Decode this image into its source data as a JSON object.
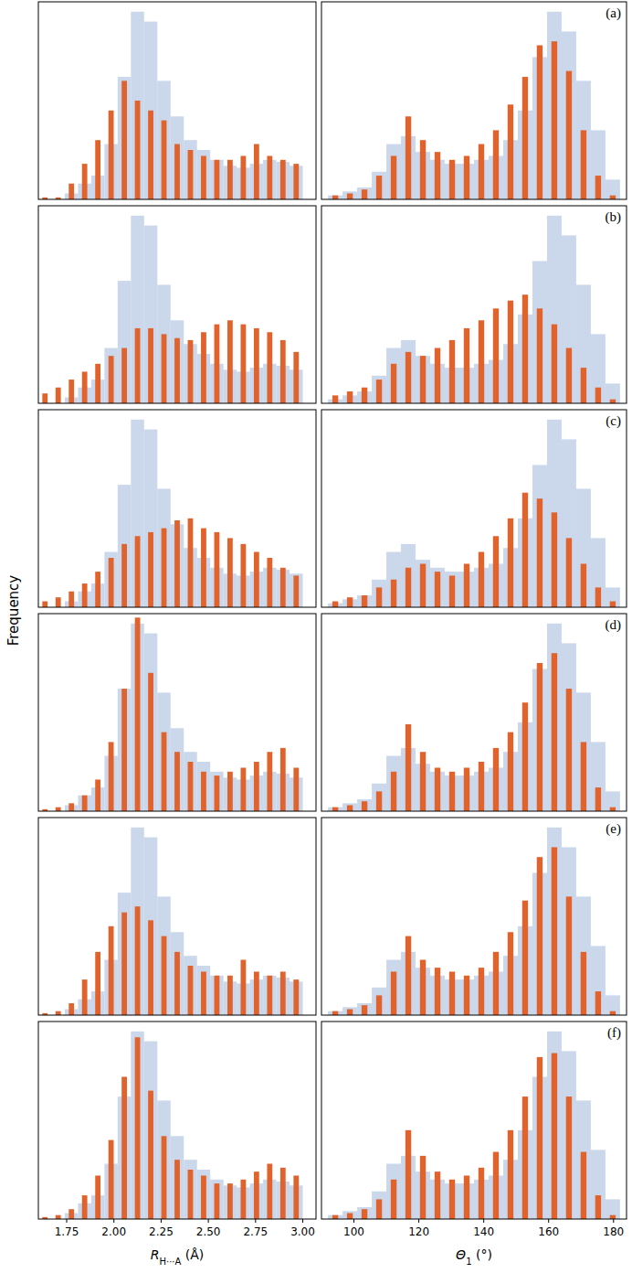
{
  "chart_data": [
    {
      "type": "histogram",
      "y_label": "Frequency",
      "xlim": [
        1.6,
        3.07
      ],
      "ylim": [
        0,
        100
      ],
      "tick_labels": false,
      "bins": [
        1.6,
        1.67,
        1.74,
        1.81,
        1.88,
        1.95,
        2.02,
        2.09,
        2.16,
        2.23,
        2.3,
        2.37,
        2.44,
        2.51,
        2.58,
        2.65,
        2.72,
        2.79,
        2.86,
        2.93,
        3.0
      ],
      "series": [
        {
          "color": "#c5d3e8",
          "values": [
            0,
            0,
            3,
            8,
            12,
            28,
            62,
            95,
            90,
            60,
            42,
            30,
            25,
            20,
            17,
            16,
            18,
            20,
            19,
            17
          ]
        },
        {
          "color": "#e0622c",
          "values": [
            1,
            1,
            8,
            18,
            30,
            45,
            60,
            50,
            45,
            40,
            28,
            25,
            22,
            20,
            20,
            22,
            28,
            22,
            20,
            18
          ]
        }
      ]
    },
    {
      "type": "histogram",
      "title": "(a)",
      "xlim": [
        90,
        184
      ],
      "ylim": [
        0,
        100
      ],
      "tick_labels": false,
      "bins": [
        92,
        96.5,
        101,
        105.5,
        110,
        114.5,
        119,
        123.5,
        128,
        132.5,
        137,
        141.5,
        146,
        150.5,
        155,
        159.5,
        164,
        168.5,
        173,
        177.5,
        182
      ],
      "series": [
        {
          "color": "#c5d3e8",
          "values": [
            2,
            4,
            6,
            14,
            28,
            32,
            24,
            20,
            18,
            18,
            20,
            22,
            30,
            45,
            72,
            95,
            85,
            60,
            35,
            10
          ]
        },
        {
          "color": "#e0622c",
          "values": [
            2,
            3,
            5,
            12,
            22,
            42,
            30,
            24,
            20,
            22,
            28,
            35,
            48,
            62,
            78,
            80,
            65,
            35,
            12,
            2
          ]
        }
      ]
    },
    {
      "type": "histogram",
      "xlim": [
        1.6,
        3.07
      ],
      "ylim": [
        0,
        100
      ],
      "tick_labels": false,
      "bins": [
        1.6,
        1.67,
        1.74,
        1.81,
        1.88,
        1.95,
        2.02,
        2.09,
        2.16,
        2.23,
        2.3,
        2.37,
        2.44,
        2.51,
        2.58,
        2.65,
        2.72,
        2.79,
        2.86,
        2.93,
        3.0
      ],
      "series": [
        {
          "color": "#c5d3e8",
          "values": [
            0,
            0,
            3,
            8,
            12,
            28,
            62,
            95,
            90,
            60,
            42,
            30,
            25,
            20,
            17,
            16,
            18,
            20,
            19,
            17
          ]
        },
        {
          "color": "#e0622c",
          "values": [
            5,
            8,
            12,
            16,
            20,
            24,
            28,
            38,
            38,
            35,
            33,
            32,
            36,
            40,
            42,
            40,
            38,
            36,
            32,
            26
          ]
        }
      ]
    },
    {
      "type": "histogram",
      "title": "(b)",
      "xlim": [
        90,
        184
      ],
      "ylim": [
        0,
        100
      ],
      "tick_labels": false,
      "bins": [
        92,
        96.5,
        101,
        105.5,
        110,
        114.5,
        119,
        123.5,
        128,
        132.5,
        137,
        141.5,
        146,
        150.5,
        155,
        159.5,
        164,
        168.5,
        173,
        177.5,
        182
      ],
      "series": [
        {
          "color": "#c5d3e8",
          "values": [
            2,
            4,
            6,
            14,
            28,
            32,
            24,
            20,
            18,
            18,
            20,
            22,
            30,
            45,
            72,
            95,
            85,
            60,
            35,
            10
          ]
        },
        {
          "color": "#e0622c",
          "values": [
            4,
            6,
            8,
            12,
            20,
            26,
            24,
            28,
            32,
            38,
            42,
            48,
            52,
            55,
            48,
            40,
            28,
            18,
            8,
            2
          ]
        }
      ]
    },
    {
      "type": "histogram",
      "xlim": [
        1.6,
        3.07
      ],
      "ylim": [
        0,
        100
      ],
      "tick_labels": false,
      "bins": [
        1.6,
        1.67,
        1.74,
        1.81,
        1.88,
        1.95,
        2.02,
        2.09,
        2.16,
        2.23,
        2.3,
        2.37,
        2.44,
        2.51,
        2.58,
        2.65,
        2.72,
        2.79,
        2.86,
        2.93,
        3.0
      ],
      "series": [
        {
          "color": "#c5d3e8",
          "values": [
            0,
            0,
            3,
            8,
            12,
            28,
            62,
            95,
            90,
            60,
            42,
            30,
            25,
            20,
            17,
            16,
            18,
            20,
            19,
            17
          ]
        },
        {
          "color": "#e0622c",
          "values": [
            3,
            5,
            8,
            12,
            18,
            25,
            32,
            36,
            38,
            40,
            44,
            45,
            40,
            38,
            35,
            32,
            28,
            25,
            20,
            16
          ]
        }
      ]
    },
    {
      "type": "histogram",
      "title": "(c)",
      "xlim": [
        90,
        184
      ],
      "ylim": [
        0,
        100
      ],
      "tick_labels": false,
      "bins": [
        92,
        96.5,
        101,
        105.5,
        110,
        114.5,
        119,
        123.5,
        128,
        132.5,
        137,
        141.5,
        146,
        150.5,
        155,
        159.5,
        164,
        168.5,
        173,
        177.5,
        182
      ],
      "series": [
        {
          "color": "#c5d3e8",
          "values": [
            2,
            4,
            6,
            14,
            28,
            32,
            24,
            20,
            18,
            18,
            20,
            22,
            30,
            45,
            72,
            95,
            85,
            60,
            35,
            10
          ]
        },
        {
          "color": "#e0622c",
          "values": [
            3,
            5,
            6,
            10,
            14,
            20,
            22,
            18,
            16,
            22,
            28,
            36,
            45,
            58,
            55,
            48,
            35,
            22,
            10,
            3
          ]
        }
      ]
    },
    {
      "type": "histogram",
      "xlim": [
        1.6,
        3.07
      ],
      "ylim": [
        0,
        100
      ],
      "tick_labels": false,
      "bins": [
        1.6,
        1.67,
        1.74,
        1.81,
        1.88,
        1.95,
        2.02,
        2.09,
        2.16,
        2.23,
        2.3,
        2.37,
        2.44,
        2.51,
        2.58,
        2.65,
        2.72,
        2.79,
        2.86,
        2.93,
        3.0
      ],
      "series": [
        {
          "color": "#c5d3e8",
          "values": [
            0,
            0,
            3,
            8,
            12,
            28,
            62,
            95,
            90,
            60,
            42,
            30,
            25,
            20,
            17,
            16,
            18,
            20,
            19,
            17
          ]
        },
        {
          "color": "#e0622c",
          "values": [
            1,
            2,
            4,
            8,
            16,
            35,
            62,
            98,
            70,
            40,
            30,
            25,
            20,
            18,
            20,
            22,
            25,
            30,
            32,
            22
          ]
        }
      ]
    },
    {
      "type": "histogram",
      "title": "(d)",
      "xlim": [
        90,
        184
      ],
      "ylim": [
        0,
        100
      ],
      "tick_labels": false,
      "bins": [
        92,
        96.5,
        101,
        105.5,
        110,
        114.5,
        119,
        123.5,
        128,
        132.5,
        137,
        141.5,
        146,
        150.5,
        155,
        159.5,
        164,
        168.5,
        173,
        177.5,
        182
      ],
      "series": [
        {
          "color": "#c5d3e8",
          "values": [
            2,
            4,
            6,
            14,
            28,
            32,
            24,
            20,
            18,
            18,
            20,
            22,
            30,
            45,
            72,
            95,
            85,
            60,
            35,
            10
          ]
        },
        {
          "color": "#e0622c",
          "values": [
            2,
            3,
            5,
            10,
            20,
            44,
            30,
            22,
            20,
            22,
            25,
            32,
            40,
            55,
            75,
            80,
            62,
            35,
            12,
            2
          ]
        }
      ]
    },
    {
      "type": "histogram",
      "xlim": [
        1.6,
        3.07
      ],
      "ylim": [
        0,
        100
      ],
      "tick_labels": false,
      "bins": [
        1.6,
        1.67,
        1.74,
        1.81,
        1.88,
        1.95,
        2.02,
        2.09,
        2.16,
        2.23,
        2.3,
        2.37,
        2.44,
        2.51,
        2.58,
        2.65,
        2.72,
        2.79,
        2.86,
        2.93,
        3.0
      ],
      "series": [
        {
          "color": "#c5d3e8",
          "values": [
            0,
            0,
            3,
            8,
            12,
            28,
            62,
            95,
            90,
            60,
            42,
            30,
            25,
            20,
            17,
            16,
            18,
            20,
            19,
            17
          ]
        },
        {
          "color": "#e0622c",
          "values": [
            1,
            2,
            6,
            18,
            32,
            45,
            52,
            55,
            48,
            40,
            32,
            25,
            22,
            20,
            20,
            28,
            22,
            20,
            22,
            18
          ]
        }
      ]
    },
    {
      "type": "histogram",
      "title": "(e)",
      "xlim": [
        90,
        184
      ],
      "ylim": [
        0,
        100
      ],
      "tick_labels": false,
      "bins": [
        92,
        96.5,
        101,
        105.5,
        110,
        114.5,
        119,
        123.5,
        128,
        132.5,
        137,
        141.5,
        146,
        150.5,
        155,
        159.5,
        164,
        168.5,
        173,
        177.5,
        182
      ],
      "series": [
        {
          "color": "#c5d3e8",
          "values": [
            2,
            4,
            6,
            14,
            28,
            32,
            24,
            20,
            18,
            18,
            20,
            22,
            30,
            45,
            72,
            95,
            85,
            60,
            35,
            10
          ]
        },
        {
          "color": "#e0622c",
          "values": [
            2,
            3,
            5,
            10,
            22,
            40,
            28,
            24,
            22,
            20,
            24,
            32,
            42,
            58,
            80,
            85,
            60,
            32,
            12,
            2
          ]
        }
      ]
    },
    {
      "type": "histogram",
      "x_label": "RH···A (Å)",
      "xlim": [
        1.6,
        3.07
      ],
      "ylim": [
        0,
        100
      ],
      "tick_labels": "x",
      "xticks": [
        1.75,
        {
          "value": 2,
          "label": "2.00"
        },
        2.25,
        {
          "value": 2.5,
          "label": "2.50"
        },
        2.75,
        {
          "value": 3,
          "label": "3.00"
        }
      ],
      "bins": [
        1.6,
        1.67,
        1.74,
        1.81,
        1.88,
        1.95,
        2.02,
        2.09,
        2.16,
        2.23,
        2.3,
        2.37,
        2.44,
        2.51,
        2.58,
        2.65,
        2.72,
        2.79,
        2.86,
        2.93,
        3.0
      ],
      "series": [
        {
          "color": "#c5d3e8",
          "values": [
            0,
            0,
            3,
            8,
            12,
            28,
            62,
            95,
            90,
            60,
            42,
            30,
            25,
            20,
            17,
            16,
            18,
            20,
            19,
            17
          ]
        },
        {
          "color": "#e0622c",
          "values": [
            1,
            2,
            5,
            12,
            22,
            40,
            72,
            92,
            65,
            42,
            30,
            25,
            22,
            18,
            18,
            20,
            24,
            28,
            26,
            22
          ]
        }
      ]
    },
    {
      "type": "histogram",
      "title": "(f)",
      "x_label": "Θ1 (°)",
      "xlim": [
        90,
        184
      ],
      "ylim": [
        0,
        100
      ],
      "tick_labels": "x",
      "xticks": [
        100,
        120,
        140,
        160,
        180
      ],
      "bins": [
        92,
        96.5,
        101,
        105.5,
        110,
        114.5,
        119,
        123.5,
        128,
        132.5,
        137,
        141.5,
        146,
        150.5,
        155,
        159.5,
        164,
        168.5,
        173,
        177.5,
        182
      ],
      "series": [
        {
          "color": "#c5d3e8",
          "values": [
            2,
            4,
            6,
            14,
            28,
            32,
            24,
            20,
            18,
            18,
            20,
            22,
            30,
            45,
            72,
            95,
            85,
            60,
            35,
            10
          ]
        },
        {
          "color": "#e0622c",
          "values": [
            2,
            3,
            5,
            10,
            20,
            45,
            32,
            24,
            20,
            22,
            26,
            34,
            45,
            62,
            82,
            84,
            62,
            34,
            12,
            2
          ]
        }
      ]
    }
  ]
}
